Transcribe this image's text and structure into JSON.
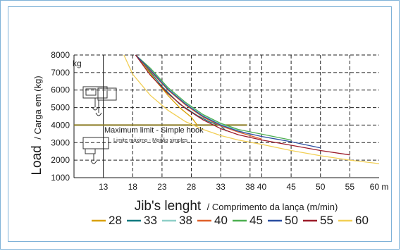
{
  "chart_data": {
    "type": "line",
    "y_unit": "kg",
    "x_unit": "m",
    "ylabel_main": "Load",
    "ylabel_sub": "/ Carga em (kg)",
    "xlabel_main": "Jib's lenght",
    "xlabel_sub": "/ Comprimento da lança (m/min)",
    "annotation_main": "Maximum limit - Simple hook",
    "annotation_sub": "Limite máximo - Moitão simples",
    "ylim": [
      1000,
      8000
    ],
    "yticks": [
      1000,
      2000,
      3000,
      4000,
      5000,
      6000,
      7000,
      8000
    ],
    "xticks": [
      13,
      18,
      23,
      28,
      33,
      38,
      40,
      45,
      50,
      55,
      60
    ],
    "x_last_tick_label": "60 m",
    "legend_position": "bottom",
    "grid": "dashed",
    "max_limit_value": 4000,
    "series": [
      {
        "name": "28",
        "color": "#d9a000",
        "x": [
          18.5,
          20,
          22,
          24,
          26,
          28,
          29
        ],
        "y": [
          8000,
          7400,
          6500,
          5700,
          5000,
          4450,
          4000
        ]
      },
      {
        "name": "33",
        "color": "#107a80",
        "x": [
          18.5,
          20,
          23,
          26,
          29,
          31,
          33,
          34
        ],
        "y": [
          8000,
          7450,
          6200,
          5200,
          4550,
          4200,
          3950,
          3650
        ]
      },
      {
        "name": "38",
        "color": "#8fcfc8",
        "x": [
          18.5,
          21,
          24,
          27,
          30,
          33,
          36,
          38
        ],
        "y": [
          8000,
          7200,
          6100,
          5250,
          4550,
          4050,
          3700,
          3450
        ]
      },
      {
        "name": "40",
        "color": "#e0602a",
        "x": [
          18.5,
          21,
          24,
          27,
          30,
          33,
          36,
          40
        ],
        "y": [
          8000,
          7100,
          6000,
          5150,
          4450,
          3950,
          3600,
          3200
        ]
      },
      {
        "name": "45",
        "color": "#4caf50",
        "x": [
          18.5,
          21,
          24,
          27,
          30,
          33,
          36,
          39,
          42,
          45
        ],
        "y": [
          8000,
          7250,
          6150,
          5300,
          4600,
          4100,
          3750,
          3550,
          3350,
          3150
        ]
      },
      {
        "name": "50",
        "color": "#2a4ea0",
        "x": [
          18.5,
          21,
          24,
          27,
          30,
          33,
          36,
          40,
          45,
          50
        ],
        "y": [
          8000,
          7150,
          6050,
          5200,
          4500,
          4000,
          3650,
          3350,
          3050,
          2700
        ]
      },
      {
        "name": "55",
        "color": "#9c1c2a",
        "x": [
          18.5,
          21,
          24,
          27,
          30,
          33,
          36,
          40,
          45,
          50,
          55
        ],
        "y": [
          8000,
          6850,
          5800,
          4950,
          4300,
          3800,
          3450,
          3150,
          2850,
          2550,
          2300
        ]
      },
      {
        "name": "60",
        "color": "#f2cf55",
        "x": [
          16.5,
          18,
          21,
          24,
          27,
          30,
          33,
          36,
          40,
          45,
          50,
          55,
          60
        ],
        "y": [
          8000,
          6900,
          5700,
          4850,
          4200,
          3750,
          3400,
          3150,
          2900,
          2550,
          2250,
          2000,
          1800
        ]
      }
    ]
  }
}
